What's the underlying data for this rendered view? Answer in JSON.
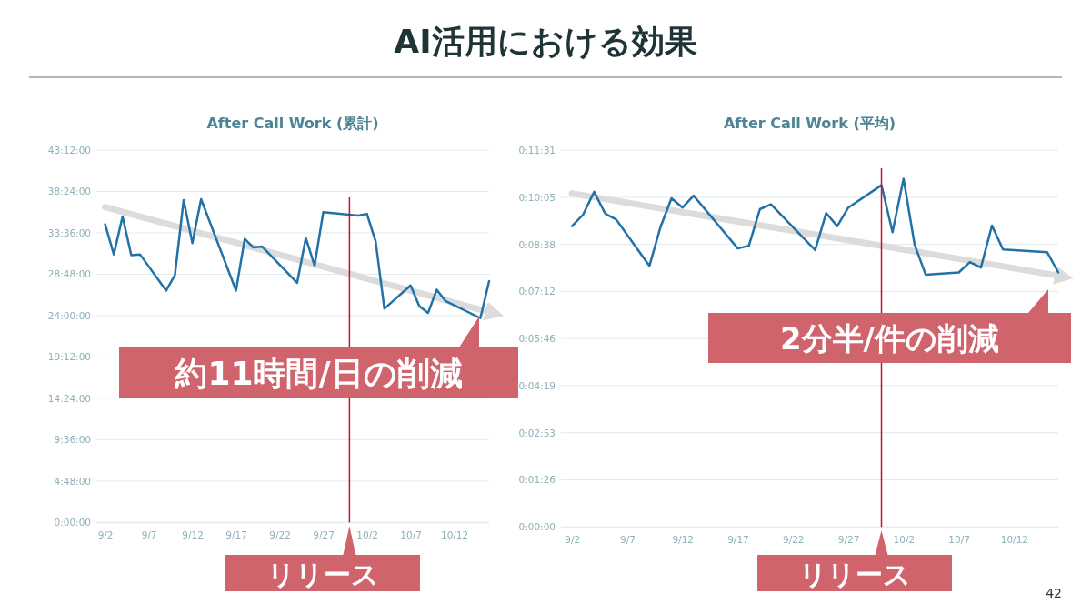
{
  "chart_data": [
    {
      "type": "line",
      "title": "After Call Work (累計)",
      "grid": "y",
      "xlim": [
        "--09-01",
        "--10-16"
      ],
      "xticks": [
        {
          "value": "--09-02",
          "label": "9/2"
        },
        {
          "value": "--09-07",
          "label": "9/7"
        },
        {
          "value": "--09-12",
          "label": "9/12"
        },
        {
          "value": "--09-17",
          "label": "9/17"
        },
        {
          "value": "--09-22",
          "label": "9/22"
        },
        {
          "value": "--09-27",
          "label": "9/27"
        },
        {
          "value": "--10-02",
          "label": "10/2"
        },
        {
          "value": "--10-07",
          "label": "10/7"
        },
        {
          "value": "--10-12",
          "label": "10/12"
        }
      ],
      "ylim": [
        0,
        43.2
      ],
      "yticks": [
        {
          "value": 0,
          "label": "0:00:00"
        },
        {
          "value": 4.8,
          "label": "4:48:00"
        },
        {
          "value": 9.6,
          "label": "9:36:00"
        },
        {
          "value": 14.4,
          "label": "14:24:00"
        },
        {
          "value": 19.2,
          "label": "19:12:00"
        },
        {
          "value": 24,
          "label": "24:00:00"
        },
        {
          "value": 28.8,
          "label": "28:48:00"
        },
        {
          "value": 33.6,
          "label": "33:36:00"
        },
        {
          "value": 38.4,
          "label": "38:24:00"
        },
        {
          "value": 43.2,
          "label": "43:12:00"
        }
      ],
      "series": [
        {
          "color": "#dcdcdc",
          "x": [
            "--09-02",
            "--10-16"
          ],
          "values": [
            36.6,
            24.4
          ]
        },
        {
          "color": "#2272a8",
          "x": [
            "--09-02",
            "--09-03",
            "--09-04",
            "--09-05",
            "--09-06",
            "--09-09",
            "--09-10",
            "--09-11",
            "--09-12",
            "--09-13",
            "--09-17",
            "--09-18",
            "--09-19",
            "--09-20",
            "--09-24",
            "--09-25",
            "--09-26",
            "--09-27",
            "--10-01",
            "--10-02",
            "--10-03",
            "--10-04",
            "--10-07",
            "--10-08",
            "--10-09",
            "--10-10",
            "--10-11",
            "--10-15",
            "--10-16"
          ],
          "values": [
            34.6,
            31.1,
            35.5,
            31.0,
            31.1,
            26.9,
            28.7,
            37.4,
            32.4,
            37.5,
            26.9,
            32.9,
            31.9,
            32.0,
            27.8,
            33.0,
            29.8,
            36.0,
            35.6,
            35.8,
            32.6,
            24.8,
            27.5,
            25.1,
            24.3,
            27.0,
            25.7,
            23.7,
            28.0
          ]
        }
      ],
      "ref_lines": [
        {
          "axis": "x",
          "value": "--09-30",
          "label": "リリース",
          "color": "#c8102e"
        }
      ],
      "annotations": [
        "AI活用における効果",
        "約11時間/日の削減"
      ]
    },
    {
      "type": "line",
      "title": "After Call Work (平均)",
      "grid": "y",
      "xlim": [
        "--09-01",
        "--10-16"
      ],
      "xticks": [
        {
          "value": "--09-02",
          "label": "9/2"
        },
        {
          "value": "--09-07",
          "label": "9/7"
        },
        {
          "value": "--09-12",
          "label": "9/12"
        },
        {
          "value": "--09-17",
          "label": "9/17"
        },
        {
          "value": "--09-22",
          "label": "9/22"
        },
        {
          "value": "--09-27",
          "label": "9/27"
        },
        {
          "value": "--10-02",
          "label": "10/2"
        },
        {
          "value": "--10-07",
          "label": "10/7"
        },
        {
          "value": "--10-12",
          "label": "10/12"
        }
      ],
      "ylim": [
        0,
        691.2
      ],
      "yticks": [
        {
          "value": 0,
          "label": "0:00:00"
        },
        {
          "value": 86.4,
          "label": "0:01:26"
        },
        {
          "value": 172.8,
          "label": "0:02:53"
        },
        {
          "value": 259.2,
          "label": "0:04:19"
        },
        {
          "value": 345.6,
          "label": "0:05:46"
        },
        {
          "value": 432,
          "label": "0:07:12"
        },
        {
          "value": 518.4,
          "label": "0:08:38"
        },
        {
          "value": 604.8,
          "label": "0:10:05"
        },
        {
          "value": 691.2,
          "label": "0:11:31"
        }
      ],
      "series": [
        {
          "color": "#dcdcdc",
          "x": [
            "--09-02",
            "--10-16"
          ],
          "values": [
            612,
            461
          ]
        },
        {
          "color": "#2272a8",
          "x": [
            "--09-02",
            "--09-03",
            "--09-04",
            "--09-05",
            "--09-06",
            "--09-09",
            "--09-10",
            "--09-11",
            "--09-12",
            "--09-13",
            "--09-17",
            "--09-18",
            "--09-19",
            "--09-20",
            "--09-24",
            "--09-25",
            "--09-26",
            "--09-27",
            "--09-30",
            "--10-01",
            "--10-02",
            "--10-03",
            "--10-04",
            "--10-07",
            "--10-08",
            "--10-09",
            "--10-10",
            "--10-11",
            "--10-15",
            "--10-16"
          ],
          "values": [
            552,
            573,
            615,
            575,
            564,
            479,
            550,
            603,
            586,
            608,
            511,
            516,
            583,
            592,
            508,
            576,
            552,
            586,
            627,
            541,
            639,
            518,
            463,
            467,
            486,
            476,
            553,
            509,
            504,
            467
          ]
        }
      ],
      "ref_lines": [
        {
          "axis": "x",
          "value": "--09-30",
          "label": "リリース",
          "color": "#c8102e"
        }
      ],
      "annotations": [
        "2分半/件の削減",
        "42"
      ]
    }
  ]
}
